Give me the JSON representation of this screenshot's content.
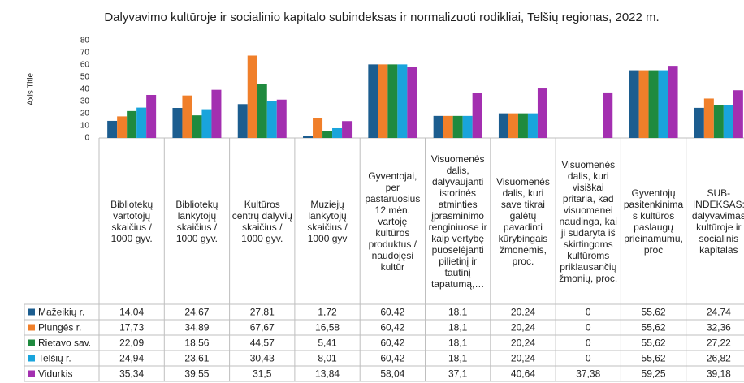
{
  "chart_data": {
    "type": "bar",
    "title": "Dalyvavimo kultūroje ir socialinio kapitalo subindeksas ir normalizuoti rodikliai, Telšių regionas, 2022 m.",
    "y_axis_title": "Axis Title",
    "categories": [
      "Bibliotekų vartotojų skaičius / 1000 gyv.",
      "Bibliotekų lankytojų skaičius / 1000 gyv.",
      "Kultūros centrų dalyvių skaičius / 1000 gyv.",
      "Muziejų lankytojų skaičius / 1000 gyv",
      "Gyventojai, per pastaruosius 12 mėn. vartoję kultūros produktus / naudojęsi kultūr",
      "Visuomenės dalis, dalyvaujanti istorinės atminties įprasminimo renginiuose ir kaip vertybę puoselėjanti pilietinį ir tautinį tapatumą,…",
      "Visuomenės dalis, kuri save tikrai galėtų pavadinti kūrybingais žmonėmis, proc.",
      "Visuomenės dalis, kuri visiškai pritaria, kad visuomenei naudinga, kai ji sudaryta iš skirtingoms kultūroms priklausančių žmonių, proc.",
      "Gyventojų pasitenkinimas kultūros paslaugų prieinamumu, proc",
      "SUB-INDEKSAS: dalyvavimas kultūroje ir socialinis kapitalas"
    ],
    "series": [
      {
        "name": "Mažeikių r.",
        "color": "#1c5d8f",
        "values": [
          14.04,
          24.67,
          27.81,
          1.72,
          60.42,
          18.1,
          20.24,
          0,
          55.62,
          24.74
        ],
        "value_labels": [
          "14,04",
          "24,67",
          "27,81",
          "1,72",
          "60,42",
          "18,1",
          "20,24",
          "0",
          "55,62",
          "24,74"
        ]
      },
      {
        "name": "Plungės r.",
        "color": "#f07f2a",
        "values": [
          17.73,
          34.89,
          67.67,
          16.58,
          60.42,
          18.1,
          20.24,
          0,
          55.62,
          32.36
        ],
        "value_labels": [
          "17,73",
          "34,89",
          "67,67",
          "16,58",
          "60,42",
          "18,1",
          "20,24",
          "0",
          "55,62",
          "32,36"
        ]
      },
      {
        "name": "Rietavo sav.",
        "color": "#1f8a3e",
        "values": [
          22.09,
          18.56,
          44.57,
          5.41,
          60.42,
          18.1,
          20.24,
          0,
          55.62,
          27.22
        ],
        "value_labels": [
          "22,09",
          "18,56",
          "44,57",
          "5,41",
          "60,42",
          "18,1",
          "20,24",
          "0",
          "55,62",
          "27,22"
        ]
      },
      {
        "name": "Telšių r.",
        "color": "#19a4dc",
        "values": [
          24.94,
          23.61,
          30.43,
          8.01,
          60.42,
          18.1,
          20.24,
          0,
          55.62,
          26.82
        ],
        "value_labels": [
          "24,94",
          "23,61",
          "30,43",
          "8,01",
          "60,42",
          "18,1",
          "20,24",
          "0",
          "55,62",
          "26,82"
        ]
      },
      {
        "name": "Vidurkis",
        "color": "#a32fb0",
        "values": [
          35.34,
          39.55,
          31.5,
          13.84,
          58.04,
          37.1,
          40.64,
          37.38,
          59.25,
          39.18
        ],
        "value_labels": [
          "35,34",
          "39,55",
          "31,5",
          "13,84",
          "58,04",
          "37,1",
          "40,64",
          "37,38",
          "59,25",
          "39,18"
        ]
      }
    ],
    "ylim": [
      0,
      80
    ],
    "yticks": [
      0,
      10,
      20,
      30,
      40,
      50,
      60,
      70,
      80
    ],
    "grid": false
  }
}
